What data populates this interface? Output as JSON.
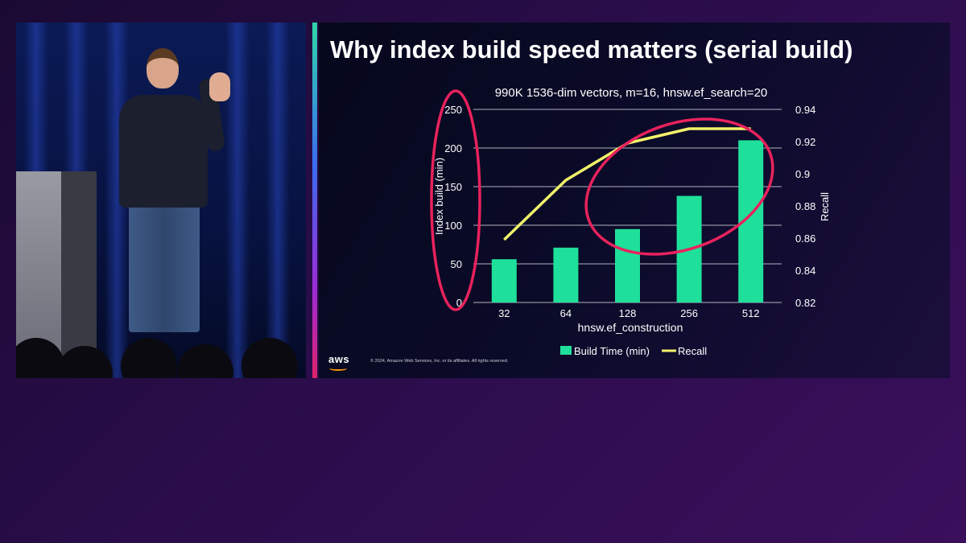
{
  "slide": {
    "title": "Why index build speed matters (serial build)",
    "logo_text": "aws",
    "copyright": "© 2024, Amazon Web Services, Inc. or its affiliates. All rights reserved."
  },
  "speaker_panel": {
    "description_icon": "speaker-video"
  },
  "colors": {
    "bar": "#1fe09a",
    "line": "#f2f26a",
    "annotation": "#e8225c",
    "grid": "#d0d0d8",
    "text": "#ffffff"
  },
  "chart_data": {
    "type": "bar",
    "title": "990K 1536-dim vectors, m=16, hnsw.ef_search=20",
    "xlabel": "hnsw.ef_construction",
    "ylabel": "Index build  (min)",
    "y2label": "Recall",
    "categories": [
      "32",
      "64",
      "128",
      "256",
      "512"
    ],
    "ylim": [
      0,
      250
    ],
    "yticks": [
      0,
      50,
      100,
      150,
      200,
      250
    ],
    "y2lim": [
      0.82,
      0.94
    ],
    "y2ticks": [
      "0.82",
      "0.84",
      "0.86",
      "0.88",
      "0.9",
      "0.92",
      "0.94"
    ],
    "grid": true,
    "legend_position": "bottom",
    "series": [
      {
        "name": "Build Time (min)",
        "type": "bar",
        "axis": "left",
        "values": [
          56,
          71,
          95,
          138,
          210
        ]
      },
      {
        "name": "Recall",
        "type": "line",
        "axis": "right",
        "values": [
          0.859,
          0.896,
          0.919,
          0.928,
          0.928
        ]
      }
    ],
    "annotations": [
      "left-axis-highlight-ellipse",
      "upper-right-highlight-ellipse"
    ]
  }
}
